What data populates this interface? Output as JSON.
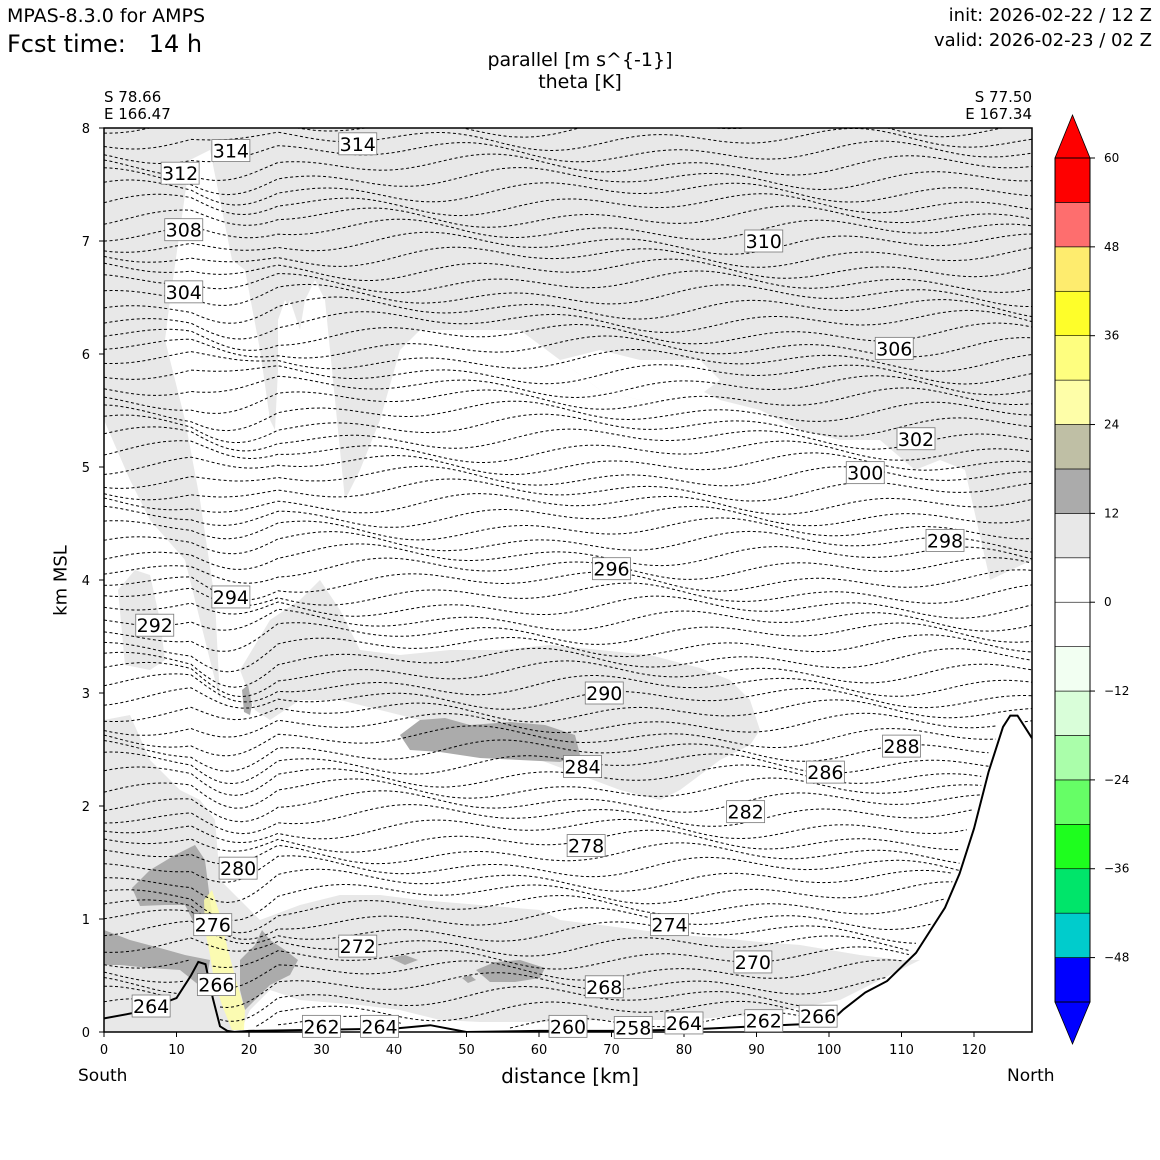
{
  "header": {
    "model": "MPAS-8.3.0 for AMPS",
    "fcst_time": "Fcst time:   14 h",
    "init": "init: 2026-02-22 / 12 Z",
    "valid": "valid: 2026-02-23 / 02 Z"
  },
  "title": {
    "line1": "parallel [m s^{-1}]",
    "line2": "theta [K]"
  },
  "corners": {
    "left_lat": "S 78.66",
    "left_lon": "E 166.47",
    "right_lat": "S 77.50",
    "right_lon": "E 167.34"
  },
  "xlabel": "distance [km]",
  "ylabel": "km MSL",
  "south_label": "South",
  "north_label": "North",
  "colors": {
    "light_gray": "#e8e8e8",
    "dark_gray": "#ababab",
    "pale_yellow": "#fefea8"
  },
  "chart_data": {
    "type": "contour",
    "title": "parallel [m s^{-1}] / theta [K]",
    "xlabel": "distance [km]",
    "ylabel": "km MSL",
    "xlim": [
      0,
      128
    ],
    "ylim": [
      0,
      8
    ],
    "xticks": [
      0,
      10,
      20,
      30,
      40,
      50,
      60,
      70,
      80,
      90,
      100,
      110,
      120
    ],
    "yticks": [
      0,
      1,
      2,
      3,
      4,
      5,
      6,
      7,
      8
    ],
    "terrain": {
      "x": [
        0,
        5,
        10,
        12,
        13,
        14,
        15,
        16,
        17,
        18,
        20,
        30,
        40,
        45,
        50,
        60,
        70,
        80,
        90,
        100,
        102,
        105,
        108,
        112,
        116,
        118,
        120,
        122,
        124,
        125,
        126,
        127,
        128
      ],
      "y": [
        0.12,
        0.18,
        0.3,
        0.5,
        0.62,
        0.6,
        0.3,
        0.05,
        0.01,
        0.0,
        0.01,
        0.02,
        0.03,
        0.06,
        0.0,
        0.01,
        0.01,
        0.02,
        0.05,
        0.08,
        0.2,
        0.35,
        0.45,
        0.7,
        1.1,
        1.4,
        1.8,
        2.3,
        2.7,
        2.8,
        2.8,
        2.7,
        2.6
      ]
    },
    "theta_labels": [
      {
        "value": "314",
        "x": 17.5,
        "y": 7.8
      },
      {
        "value": "314",
        "x": 35,
        "y": 7.86
      },
      {
        "value": "312",
        "x": 10.5,
        "y": 7.6
      },
      {
        "value": "308",
        "x": 11,
        "y": 7.1
      },
      {
        "value": "304",
        "x": 11,
        "y": 6.55
      },
      {
        "value": "310",
        "x": 91,
        "y": 7.0
      },
      {
        "value": "306",
        "x": 109,
        "y": 6.05
      },
      {
        "value": "302",
        "x": 112,
        "y": 5.25
      },
      {
        "value": "300",
        "x": 105,
        "y": 4.95
      },
      {
        "value": "298",
        "x": 116,
        "y": 4.35
      },
      {
        "value": "296",
        "x": 70,
        "y": 4.1
      },
      {
        "value": "294",
        "x": 17.5,
        "y": 3.85
      },
      {
        "value": "292",
        "x": 7,
        "y": 3.6
      },
      {
        "value": "290",
        "x": 69,
        "y": 3.0
      },
      {
        "value": "288",
        "x": 110,
        "y": 2.53
      },
      {
        "value": "286",
        "x": 99.5,
        "y": 2.3
      },
      {
        "value": "284",
        "x": 66,
        "y": 2.35
      },
      {
        "value": "282",
        "x": 88.5,
        "y": 1.95
      },
      {
        "value": "280",
        "x": 18.5,
        "y": 1.45
      },
      {
        "value": "278",
        "x": 66.5,
        "y": 1.65
      },
      {
        "value": "276",
        "x": 15,
        "y": 0.95
      },
      {
        "value": "274",
        "x": 78,
        "y": 0.95
      },
      {
        "value": "272",
        "x": 35,
        "y": 0.76
      },
      {
        "value": "270",
        "x": 89.5,
        "y": 0.62
      },
      {
        "value": "268",
        "x": 69,
        "y": 0.4
      },
      {
        "value": "266",
        "x": 15.5,
        "y": 0.42
      },
      {
        "value": "266",
        "x": 98.5,
        "y": 0.14
      },
      {
        "value": "264",
        "x": 6.5,
        "y": 0.23
      },
      {
        "value": "264",
        "x": 38,
        "y": 0.05
      },
      {
        "value": "264",
        "x": 80,
        "y": 0.08
      },
      {
        "value": "262",
        "x": 30,
        "y": 0.05
      },
      {
        "value": "262",
        "x": 91,
        "y": 0.1
      },
      {
        "value": "260",
        "x": 64,
        "y": 0.05
      },
      {
        "value": "258",
        "x": 73,
        "y": 0.04
      }
    ],
    "colorbar": {
      "ticks": [
        "60",
        "48",
        "36",
        "24",
        "12",
        "0",
        "−12",
        "−24",
        "−36",
        "−48"
      ],
      "levels": [
        -54,
        -48,
        -42,
        -36,
        -30,
        -24,
        -18,
        -12,
        -6,
        0,
        6,
        12,
        18,
        24,
        30,
        36,
        42,
        48,
        54,
        60
      ],
      "colors": [
        "#0000ff",
        "#00cccc",
        "#00e56a",
        "#1efe1e",
        "#66fe66",
        "#aafeaa",
        "#d9fed9",
        "#f2fff2",
        "#ffffff",
        "#ffffff",
        "#e8e8e8",
        "#ababab",
        "#bfbfa5",
        "#fefea8",
        "#fefe7f",
        "#fefe2a",
        "#feec6e",
        "#fe6e6e",
        "#fe0000"
      ],
      "extend": "both"
    }
  }
}
